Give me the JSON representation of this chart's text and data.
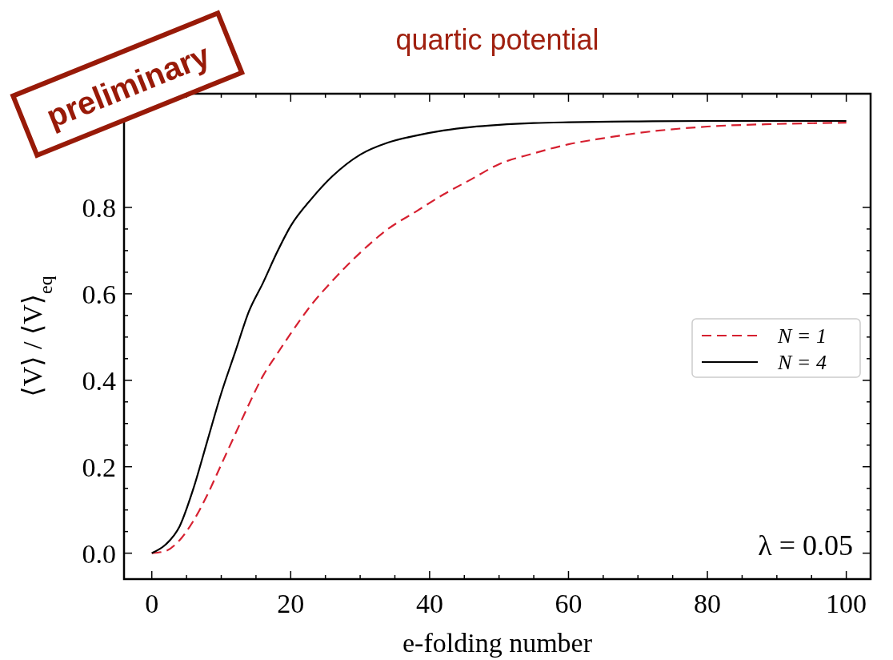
{
  "chart_data": {
    "type": "line",
    "title": "quartic potential",
    "xlabel": "e-folding number",
    "ylabel": "⟨V⟩ / ⟨V⟩$_{eq}$",
    "annotations": [
      "λ = 0.05",
      "preliminary"
    ],
    "xlim": [
      -4,
      103.5
    ],
    "ylim": [
      -0.06,
      1.063
    ],
    "xticks": [
      0,
      {
        "value": 5,
        "label": null
      },
      {
        "value": 10,
        "label": null
      },
      {
        "value": 15,
        "label": null
      },
      20,
      {
        "value": 25,
        "label": null
      },
      {
        "value": 30,
        "label": null
      },
      {
        "value": 35,
        "label": null
      },
      40,
      {
        "value": 45,
        "label": null
      },
      {
        "value": 50,
        "label": null
      },
      {
        "value": 55,
        "label": null
      },
      60,
      {
        "value": 65,
        "label": null
      },
      {
        "value": 70,
        "label": null
      },
      {
        "value": 75,
        "label": null
      },
      80,
      {
        "value": 85,
        "label": null
      },
      {
        "value": 90,
        "label": null
      },
      {
        "value": 95,
        "label": null
      },
      100
    ],
    "yticks": [
      {
        "value": 0,
        "label": "0.0"
      },
      {
        "value": 0.05,
        "label": null
      },
      {
        "value": 0.1,
        "label": null
      },
      {
        "value": 0.15,
        "label": null
      },
      0.2,
      {
        "value": 0.25,
        "label": null
      },
      {
        "value": 0.3,
        "label": null
      },
      {
        "value": 0.35,
        "label": null
      },
      0.4,
      {
        "value": 0.45,
        "label": null
      },
      {
        "value": 0.5,
        "label": null
      },
      {
        "value": 0.55,
        "label": null
      },
      0.6,
      {
        "value": 0.65,
        "label": null
      },
      {
        "value": 0.7,
        "label": null
      },
      {
        "value": 0.75,
        "label": null
      },
      0.8
    ],
    "legend": "right",
    "series": [
      {
        "name": "N = 1",
        "color": "#d62030",
        "line_style": "dashed",
        "x": [
          0,
          2,
          4,
          6,
          8,
          10,
          12,
          14,
          16,
          18,
          20,
          23,
          26,
          30,
          34,
          38,
          42,
          46,
          50,
          55,
          60,
          65,
          70,
          80,
          90,
          100
        ],
        "values": [
          0,
          0.005,
          0.03,
          0.075,
          0.135,
          0.205,
          0.275,
          0.345,
          0.41,
          0.46,
          0.508,
          0.575,
          0.63,
          0.695,
          0.75,
          0.79,
          0.83,
          0.865,
          0.9,
          0.925,
          0.946,
          0.96,
          0.972,
          0.987,
          0.993,
          0.996
        ]
      },
      {
        "name": "N = 4",
        "color": "#000000",
        "line_style": "solid",
        "x": [
          0,
          2,
          4,
          6,
          8,
          10,
          12,
          14,
          16,
          18,
          20,
          23,
          26,
          30,
          34,
          38,
          42,
          46,
          50,
          55,
          60,
          70,
          80,
          100
        ],
        "values": [
          0,
          0.02,
          0.062,
          0.15,
          0.26,
          0.37,
          0.465,
          0.56,
          0.625,
          0.695,
          0.757,
          0.82,
          0.872,
          0.922,
          0.95,
          0.966,
          0.978,
          0.986,
          0.991,
          0.995,
          0.997,
          0.999,
          1.0,
          1.0
        ]
      }
    ]
  }
}
